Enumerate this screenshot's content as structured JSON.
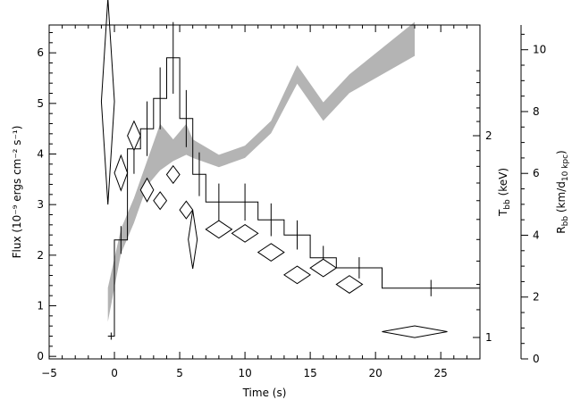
{
  "chart_data": {
    "type": "line",
    "xlabel": "Time (s)",
    "xlim": [
      -5,
      28
    ],
    "x_ticks": [
      "−5",
      "0",
      "5",
      "10",
      "15",
      "20",
      "25"
    ],
    "x_tick_values": [
      -5,
      0,
      5,
      10,
      15,
      20,
      25
    ],
    "left_axis": {
      "label": "Flux (10⁻⁹ ergs cm⁻² s⁻¹)",
      "ylim": [
        -0.05,
        6.55
      ],
      "ticks": [
        0,
        1,
        2,
        3,
        4,
        5,
        6
      ],
      "tick_labels": [
        "0",
        "1",
        "2",
        "3",
        "4",
        "5",
        "6"
      ]
    },
    "temperature_axis": {
      "label": "T_bb (keV)",
      "label_main": "T",
      "label_sub": "bb",
      "label_rest": " (keV)",
      "scale": "log",
      "ticks": [
        1,
        2
      ],
      "tick_labels": [
        "1",
        "2"
      ]
    },
    "radius_axis": {
      "label": "R_bb (km/d_10 kpc)",
      "label_main": "R",
      "label_sub": "bb",
      "label_mid": " (km/d",
      "label_sub2": "10 kpc",
      "label_end": ")",
      "ylim": [
        0,
        10.8
      ],
      "ticks": [
        0,
        2,
        4,
        6,
        8,
        10
      ],
      "tick_labels": [
        "0",
        "2",
        "4",
        "6",
        "8",
        "10"
      ]
    },
    "flux_series": {
      "edges": [
        -0.5,
        0,
        1,
        2,
        3,
        4,
        5,
        6,
        7,
        9,
        11,
        13,
        15,
        17,
        20.5,
        28
      ],
      "values": [
        0.4,
        2.3,
        4.1,
        4.5,
        5.1,
        5.9,
        4.7,
        3.6,
        3.05,
        3.05,
        2.7,
        2.4,
        1.95,
        1.75,
        1.35
      ]
    },
    "temperature_series": {
      "x": [
        -0.5,
        0.5,
        1.5,
        2.5,
        3.5,
        4.5,
        5.5,
        6,
        8,
        10,
        12,
        14,
        16,
        18,
        23
      ],
      "values": [
        2.25,
        1.76,
        2.0,
        1.66,
        1.6,
        1.75,
        1.55,
        1.4,
        1.45,
        1.43,
        1.34,
        1.24,
        1.27,
        1.2,
        1.02
      ],
      "x_err": [
        0.5,
        0.5,
        0.5,
        0.5,
        0.5,
        0.5,
        0.5,
        0.2,
        1,
        1,
        1,
        1,
        1,
        1,
        2.5
      ],
      "y_err_frac": [
        0.34,
        0.06,
        0.05,
        0.04,
        0.03,
        0.03,
        0.03,
        0.1,
        0.03,
        0.03,
        0.03,
        0.03,
        0.03,
        0.03,
        0.02
      ]
    },
    "radius_band": {
      "x": [
        -0.5,
        0.5,
        1.5,
        2.5,
        3.5,
        4.5,
        5.5,
        6,
        8,
        10,
        12,
        14,
        16,
        18,
        23
      ],
      "lower": [
        1.2,
        3.4,
        4.4,
        5.6,
        6.1,
        6.4,
        6.6,
        6.5,
        6.2,
        6.5,
        7.3,
        8.9,
        7.7,
        8.6,
        9.8
      ],
      "upper": [
        2.3,
        4.2,
        5.2,
        6.4,
        7.6,
        7.1,
        7.6,
        7.1,
        6.6,
        6.9,
        7.7,
        9.5,
        8.3,
        9.2,
        10.9
      ]
    }
  }
}
